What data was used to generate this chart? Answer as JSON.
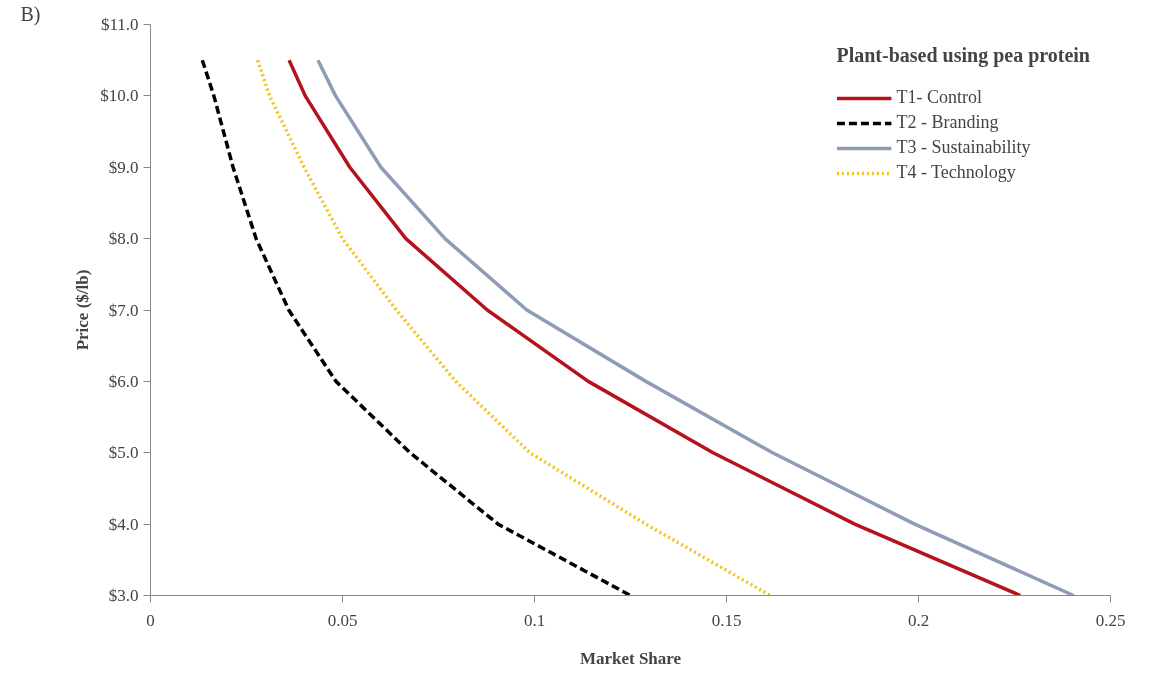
{
  "chart_data": {
    "type": "line",
    "legend_title": "Plant-based using pea protein",
    "xlabel": "Market Share",
    "ylabel": "Price ($/lb)",
    "annotations": [
      "B)"
    ],
    "xlim": [
      0,
      0.25
    ],
    "xticks": [
      0,
      0.05,
      0.1,
      0.15,
      0.2,
      0.25
    ],
    "ylim": [
      3,
      11
    ],
    "yticks": [
      {
        "value": 3,
        "label": "$3.0"
      },
      {
        "value": 4,
        "label": "$4.0"
      },
      {
        "value": 5,
        "label": "$5.0"
      },
      {
        "value": 6,
        "label": "$6.0"
      },
      {
        "value": 7,
        "label": "$7.0"
      },
      {
        "value": 8,
        "label": "$8.0"
      },
      {
        "value": 9,
        "label": "$9.0"
      },
      {
        "value": 10,
        "label": "$10.0"
      },
      {
        "value": 11,
        "label": "$11.0"
      }
    ],
    "grid": false,
    "legend": "top right",
    "marker": "none",
    "series": [
      {
        "name": "T1- Control",
        "color": "#b5121b",
        "line_style": "solid",
        "x": [
          0.0361,
          0.0403,
          0.0519,
          0.0665,
          0.0877,
          0.114,
          0.1465,
          0.1834,
          0.2265
        ],
        "values": [
          10.5,
          10,
          9,
          8,
          7,
          6,
          5,
          4,
          3
        ]
      },
      {
        "name": "T2 - Branding",
        "color": "#000000",
        "line_style": "dashed",
        "x": [
          0.0135,
          0.0165,
          0.0215,
          0.0275,
          0.036,
          0.0483,
          0.0676,
          0.0905,
          0.125
        ],
        "values": [
          10.5,
          10,
          9,
          8,
          7,
          6,
          5,
          4,
          3
        ]
      },
      {
        "name": "T3 - Sustainability",
        "color": "#8e9db5",
        "line_style": "solid",
        "x": [
          0.0436,
          0.0482,
          0.06,
          0.0767,
          0.098,
          0.129,
          0.162,
          0.199,
          0.2404
        ],
        "values": [
          10.5,
          10,
          9,
          8,
          7,
          6,
          5,
          4,
          3
        ]
      },
      {
        "name": "T4 - Technology",
        "color": "#f2c314",
        "line_style": "dotted",
        "x": [
          0.0279,
          0.031,
          0.04,
          0.05,
          0.064,
          0.0795,
          0.0988,
          0.129,
          0.1614
        ],
        "values": [
          10.5,
          10,
          9,
          8,
          7,
          6,
          5,
          4,
          3
        ]
      }
    ]
  }
}
